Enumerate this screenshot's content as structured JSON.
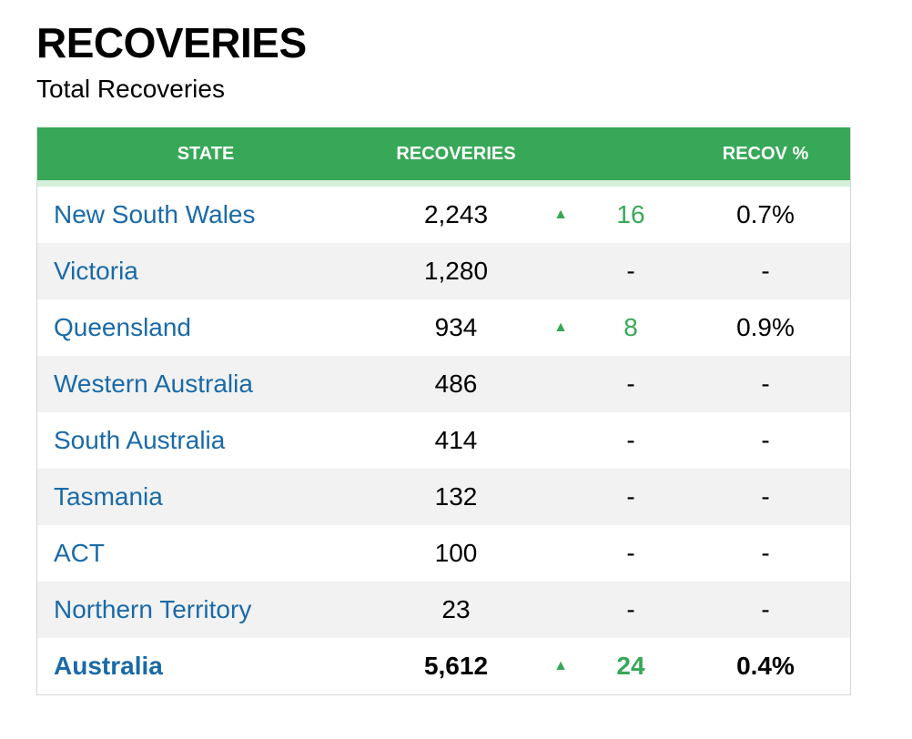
{
  "header": {
    "title": "RECOVERIES",
    "subtitle": "Total Recoveries"
  },
  "table": {
    "columns": {
      "state": "STATE",
      "recoveries": "RECOVERIES",
      "recov_pct": "RECOV %"
    },
    "rows": [
      {
        "state": "New South Wales",
        "recoveries": "2,243",
        "arrow": "▲",
        "change": "16",
        "pct": "0.7%"
      },
      {
        "state": "Victoria",
        "recoveries": "1,280",
        "arrow": "",
        "change": "-",
        "pct": "-"
      },
      {
        "state": "Queensland",
        "recoveries": "934",
        "arrow": "▲",
        "change": "8",
        "pct": "0.9%"
      },
      {
        "state": "Western Australia",
        "recoveries": "486",
        "arrow": "",
        "change": "-",
        "pct": "-"
      },
      {
        "state": "South Australia",
        "recoveries": "414",
        "arrow": "",
        "change": "-",
        "pct": "-"
      },
      {
        "state": "Tasmania",
        "recoveries": "132",
        "arrow": "",
        "change": "-",
        "pct": "-"
      },
      {
        "state": "ACT",
        "recoveries": "100",
        "arrow": "",
        "change": "-",
        "pct": "-"
      },
      {
        "state": "Northern Territory",
        "recoveries": "23",
        "arrow": "",
        "change": "-",
        "pct": "-"
      }
    ],
    "total": {
      "state": "Australia",
      "recoveries": "5,612",
      "arrow": "▲",
      "change": "24",
      "pct": "0.4%"
    }
  },
  "colors": {
    "header_bg": "#37a857",
    "link": "#1a6aa8",
    "increase": "#37a857",
    "alt_row": "#f2f2f2"
  },
  "icons": {
    "increase": "triangle-up-icon"
  }
}
